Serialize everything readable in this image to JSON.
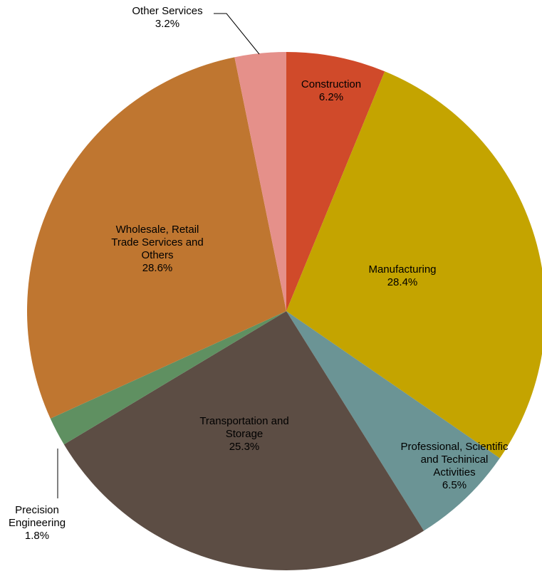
{
  "chart_data": {
    "type": "pie",
    "categories": [
      "Construction",
      "Manufacturing",
      "Professional, Scientific and Techinical Activities",
      "Transportation and Storage",
      "Precision Engineering",
      "Wholesale, Retail Trade Services and Others",
      "Other Services"
    ],
    "values": [
      6.2,
      28.4,
      6.5,
      25.3,
      1.8,
      28.6,
      3.2
    ],
    "value_labels": [
      "6.2%",
      "28.4%",
      "6.5%",
      "25.3%",
      "1.8%",
      "28.6%",
      "3.2%"
    ],
    "colors": [
      "#d04a2a",
      "#c4a400",
      "#6b9495",
      "#5c4d44",
      "#5f9061",
      "#bf7630",
      "#e5908a"
    ]
  }
}
